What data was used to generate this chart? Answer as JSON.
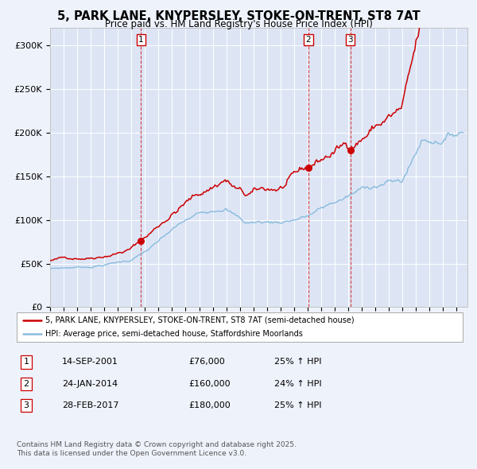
{
  "title": "5, PARK LANE, KNYPERSLEY, STOKE-ON-TRENT, ST8 7AT",
  "subtitle": "Price paid vs. HM Land Registry's House Price Index (HPI)",
  "title_fontsize": 10.5,
  "subtitle_fontsize": 8.5,
  "bg_color": "#eef2fb",
  "plot_bg_color": "#dde5f5",
  "grid_color": "#ffffff",
  "red_line_color": "#cc0000",
  "blue_line_color": "#88bbdd",
  "legend_label_red": "5, PARK LANE, KNYPERSLEY, STOKE-ON-TRENT, ST8 7AT (semi-detached house)",
  "legend_label_blue": "HPI: Average price, semi-detached house, Staffordshire Moorlands",
  "ylim": [
    0,
    320000
  ],
  "yticks": [
    0,
    50000,
    100000,
    150000,
    200000,
    250000,
    300000
  ],
  "ytick_labels": [
    "£0",
    "£50K",
    "£100K",
    "£150K",
    "£200K",
    "£250K",
    "£300K"
  ],
  "transactions": [
    {
      "num": 1,
      "date_label": "14-SEP-2001",
      "price": "£76,000",
      "hpi_change": "25% ↑ HPI",
      "x_year": 2001.71,
      "y_val": 76000
    },
    {
      "num": 2,
      "date_label": "24-JAN-2014",
      "price": "£160,000",
      "hpi_change": "24% ↑ HPI",
      "x_year": 2014.07,
      "y_val": 160000
    },
    {
      "num": 3,
      "date_label": "28-FEB-2017",
      "price": "£180,000",
      "hpi_change": "25% ↑ HPI",
      "x_year": 2017.16,
      "y_val": 180000
    }
  ],
  "footnote1": "Contains HM Land Registry data © Crown copyright and database right 2025.",
  "footnote2": "This data is licensed under the Open Government Licence v3.0.",
  "xmin": 1995.0,
  "xmax": 2025.8
}
